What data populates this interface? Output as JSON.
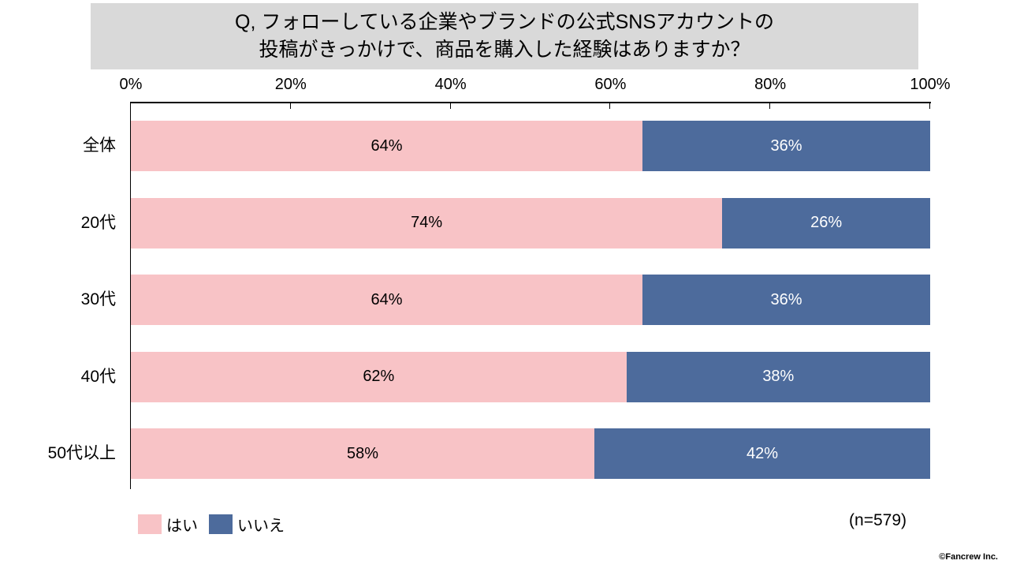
{
  "title": {
    "line1": "Q, フォローしている企業やブランドの公式SNSアカウントの",
    "line2": "投稿がきっかけで、商品を購入した経験はありますか？"
  },
  "sample_size": "(n=579)",
  "footer_credit": "©Fancrew Inc.",
  "colors": {
    "yes": "#f8c3c6",
    "no": "#4d6b9c",
    "title_background": "#d9d9d9"
  },
  "chart_data": {
    "type": "bar",
    "orientation": "horizontal-stacked",
    "title": "Q, フォローしている企業やブランドの公式SNSアカウントの投稿がきっかけで、商品を購入した経験はありますか？",
    "categories": [
      "全体",
      "20代",
      "30代",
      "40代",
      "50代以上"
    ],
    "series": [
      {
        "key": "yes",
        "name": "はい",
        "values": [
          64,
          74,
          64,
          62,
          58
        ],
        "color": "#f8c3c6",
        "label_color": "#000000"
      },
      {
        "key": "no",
        "name": "いいえ",
        "values": [
          36,
          26,
          36,
          38,
          42
        ],
        "color": "#4d6b9c",
        "label_color": "#ffffff"
      }
    ],
    "x_ticks": [
      "0%",
      "20%",
      "40%",
      "60%",
      "80%",
      "100%"
    ],
    "xlim": [
      0,
      100
    ],
    "value_label_format": "percent",
    "grid": false,
    "legend_position": "bottom-left",
    "annotation": "(n=579)"
  }
}
